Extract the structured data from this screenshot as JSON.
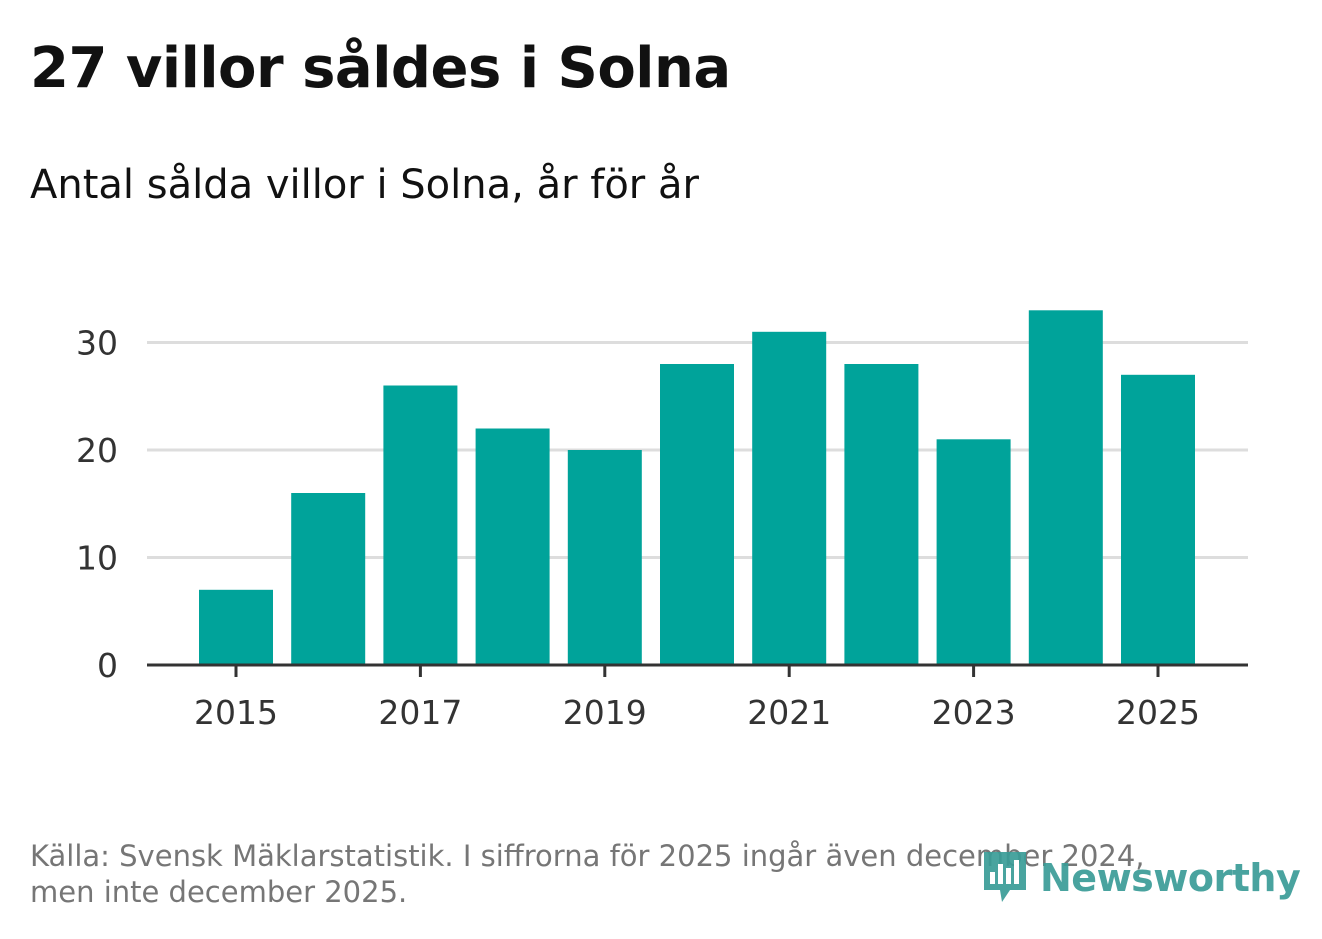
{
  "title": "27 villor såldes i Solna",
  "subtitle": "Antal sålda villor i Solna, år för år",
  "source": {
    "line1": "Källa: Svensk Mäklarstatistik. I siffrorna för 2025 ingår även december 2024,",
    "line2": "men inte december 2025."
  },
  "logo": {
    "text": "Newsworthy",
    "icon": "bar-chart-speech-icon"
  },
  "colors": {
    "bar": "#00a39a",
    "grid": "#dddddd",
    "axis": "#333333",
    "tick_text": "#333333",
    "logo": "#3a9c97"
  },
  "chart_data": {
    "type": "bar",
    "categories": [
      "2015",
      "2016",
      "2017",
      "2018",
      "2019",
      "2020",
      "2021",
      "2022",
      "2023",
      "2024",
      "2025"
    ],
    "values": [
      7,
      16,
      26,
      22,
      20,
      28,
      31,
      28,
      21,
      33,
      27
    ],
    "x_tick_labels": [
      "2015",
      "2017",
      "2019",
      "2021",
      "2023",
      "2025"
    ],
    "y_ticks": [
      0,
      10,
      20,
      30
    ],
    "ylim": [
      0,
      35
    ],
    "xlabel": "",
    "ylabel": "",
    "grid": true
  }
}
